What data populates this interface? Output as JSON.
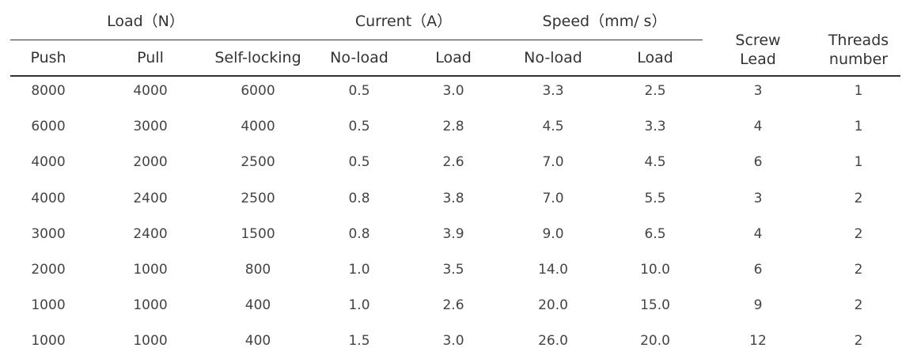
{
  "groups": {
    "load": "Load（N）",
    "current": "Current（A）",
    "speed": "Speed（mm/ s）"
  },
  "columns": [
    "Push",
    "Pull",
    "Self-locking",
    "No-load",
    "Load",
    "No-load",
    "Load",
    "Screw\nLead",
    "Threads\nnumber"
  ],
  "rows": [
    [
      "8000",
      "4000",
      "6000",
      "0.5",
      "3.0",
      "3.3",
      "2.5",
      "3",
      "1"
    ],
    [
      "6000",
      "3000",
      "4000",
      "0.5",
      "2.8",
      "4.5",
      "3.3",
      "4",
      "1"
    ],
    [
      "4000",
      "2000",
      "2500",
      "0.5",
      "2.6",
      "7.0",
      "4.5",
      "6",
      "1"
    ],
    [
      "4000",
      "2400",
      "2500",
      "0.8",
      "3.8",
      "7.0",
      "5.5",
      "3",
      "2"
    ],
    [
      "3000",
      "2400",
      "1500",
      "0.8",
      "3.9",
      "9.0",
      "6.5",
      "4",
      "2"
    ],
    [
      "2000",
      "1000",
      "800",
      "1.0",
      "3.5",
      "14.0",
      "10.0",
      "6",
      "2"
    ],
    [
      "1000",
      "1000",
      "400",
      "1.0",
      "2.6",
      "20.0",
      "15.0",
      "9",
      "2"
    ],
    [
      "1000",
      "1000",
      "400",
      "1.5",
      "3.0",
      "26.0",
      "20.0",
      "12",
      "2"
    ]
  ]
}
